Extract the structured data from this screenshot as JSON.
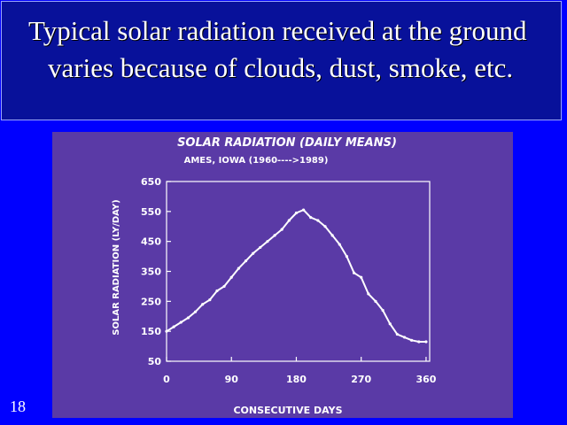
{
  "slide": {
    "title": "Typical solar radiation received at  the ground varies because of clouds, dust, smoke, etc.",
    "number": "18"
  },
  "colors": {
    "background": "#0000ff",
    "title_box": "#08119a",
    "photo_background": "#5a3aa6",
    "trace": "#ffffff"
  },
  "chart_data": {
    "type": "line",
    "title": "SOLAR RADIATION (DAILY MEANS)",
    "subtitle": "AMES, IOWA (1960---->1989)",
    "xlabel": "CONSECUTIVE DAYS",
    "ylabel": "SOLAR RADIATION (LY/DAY)",
    "xlim": [
      0,
      365
    ],
    "ylim": [
      50,
      650
    ],
    "x_ticks": [
      "0",
      "90",
      "180",
      "270",
      "360"
    ],
    "y_ticks": [
      "50",
      "150",
      "250",
      "350",
      "450",
      "550",
      "650"
    ],
    "grid": false,
    "series": [
      {
        "x": [
          0,
          10,
          20,
          30,
          40,
          50,
          60,
          70,
          80,
          90,
          100,
          110,
          120,
          130,
          140,
          150,
          160,
          170,
          180,
          190,
          200,
          210,
          220,
          230,
          240,
          250,
          260,
          270,
          280,
          290,
          300,
          310,
          320,
          330,
          340,
          350,
          360
        ],
        "values": [
          150,
          165,
          180,
          195,
          215,
          240,
          255,
          285,
          300,
          330,
          360,
          385,
          410,
          430,
          450,
          470,
          490,
          520,
          545,
          555,
          530,
          520,
          500,
          470,
          440,
          400,
          345,
          330,
          275,
          250,
          220,
          175,
          140,
          130,
          120,
          115,
          115
        ]
      }
    ]
  }
}
